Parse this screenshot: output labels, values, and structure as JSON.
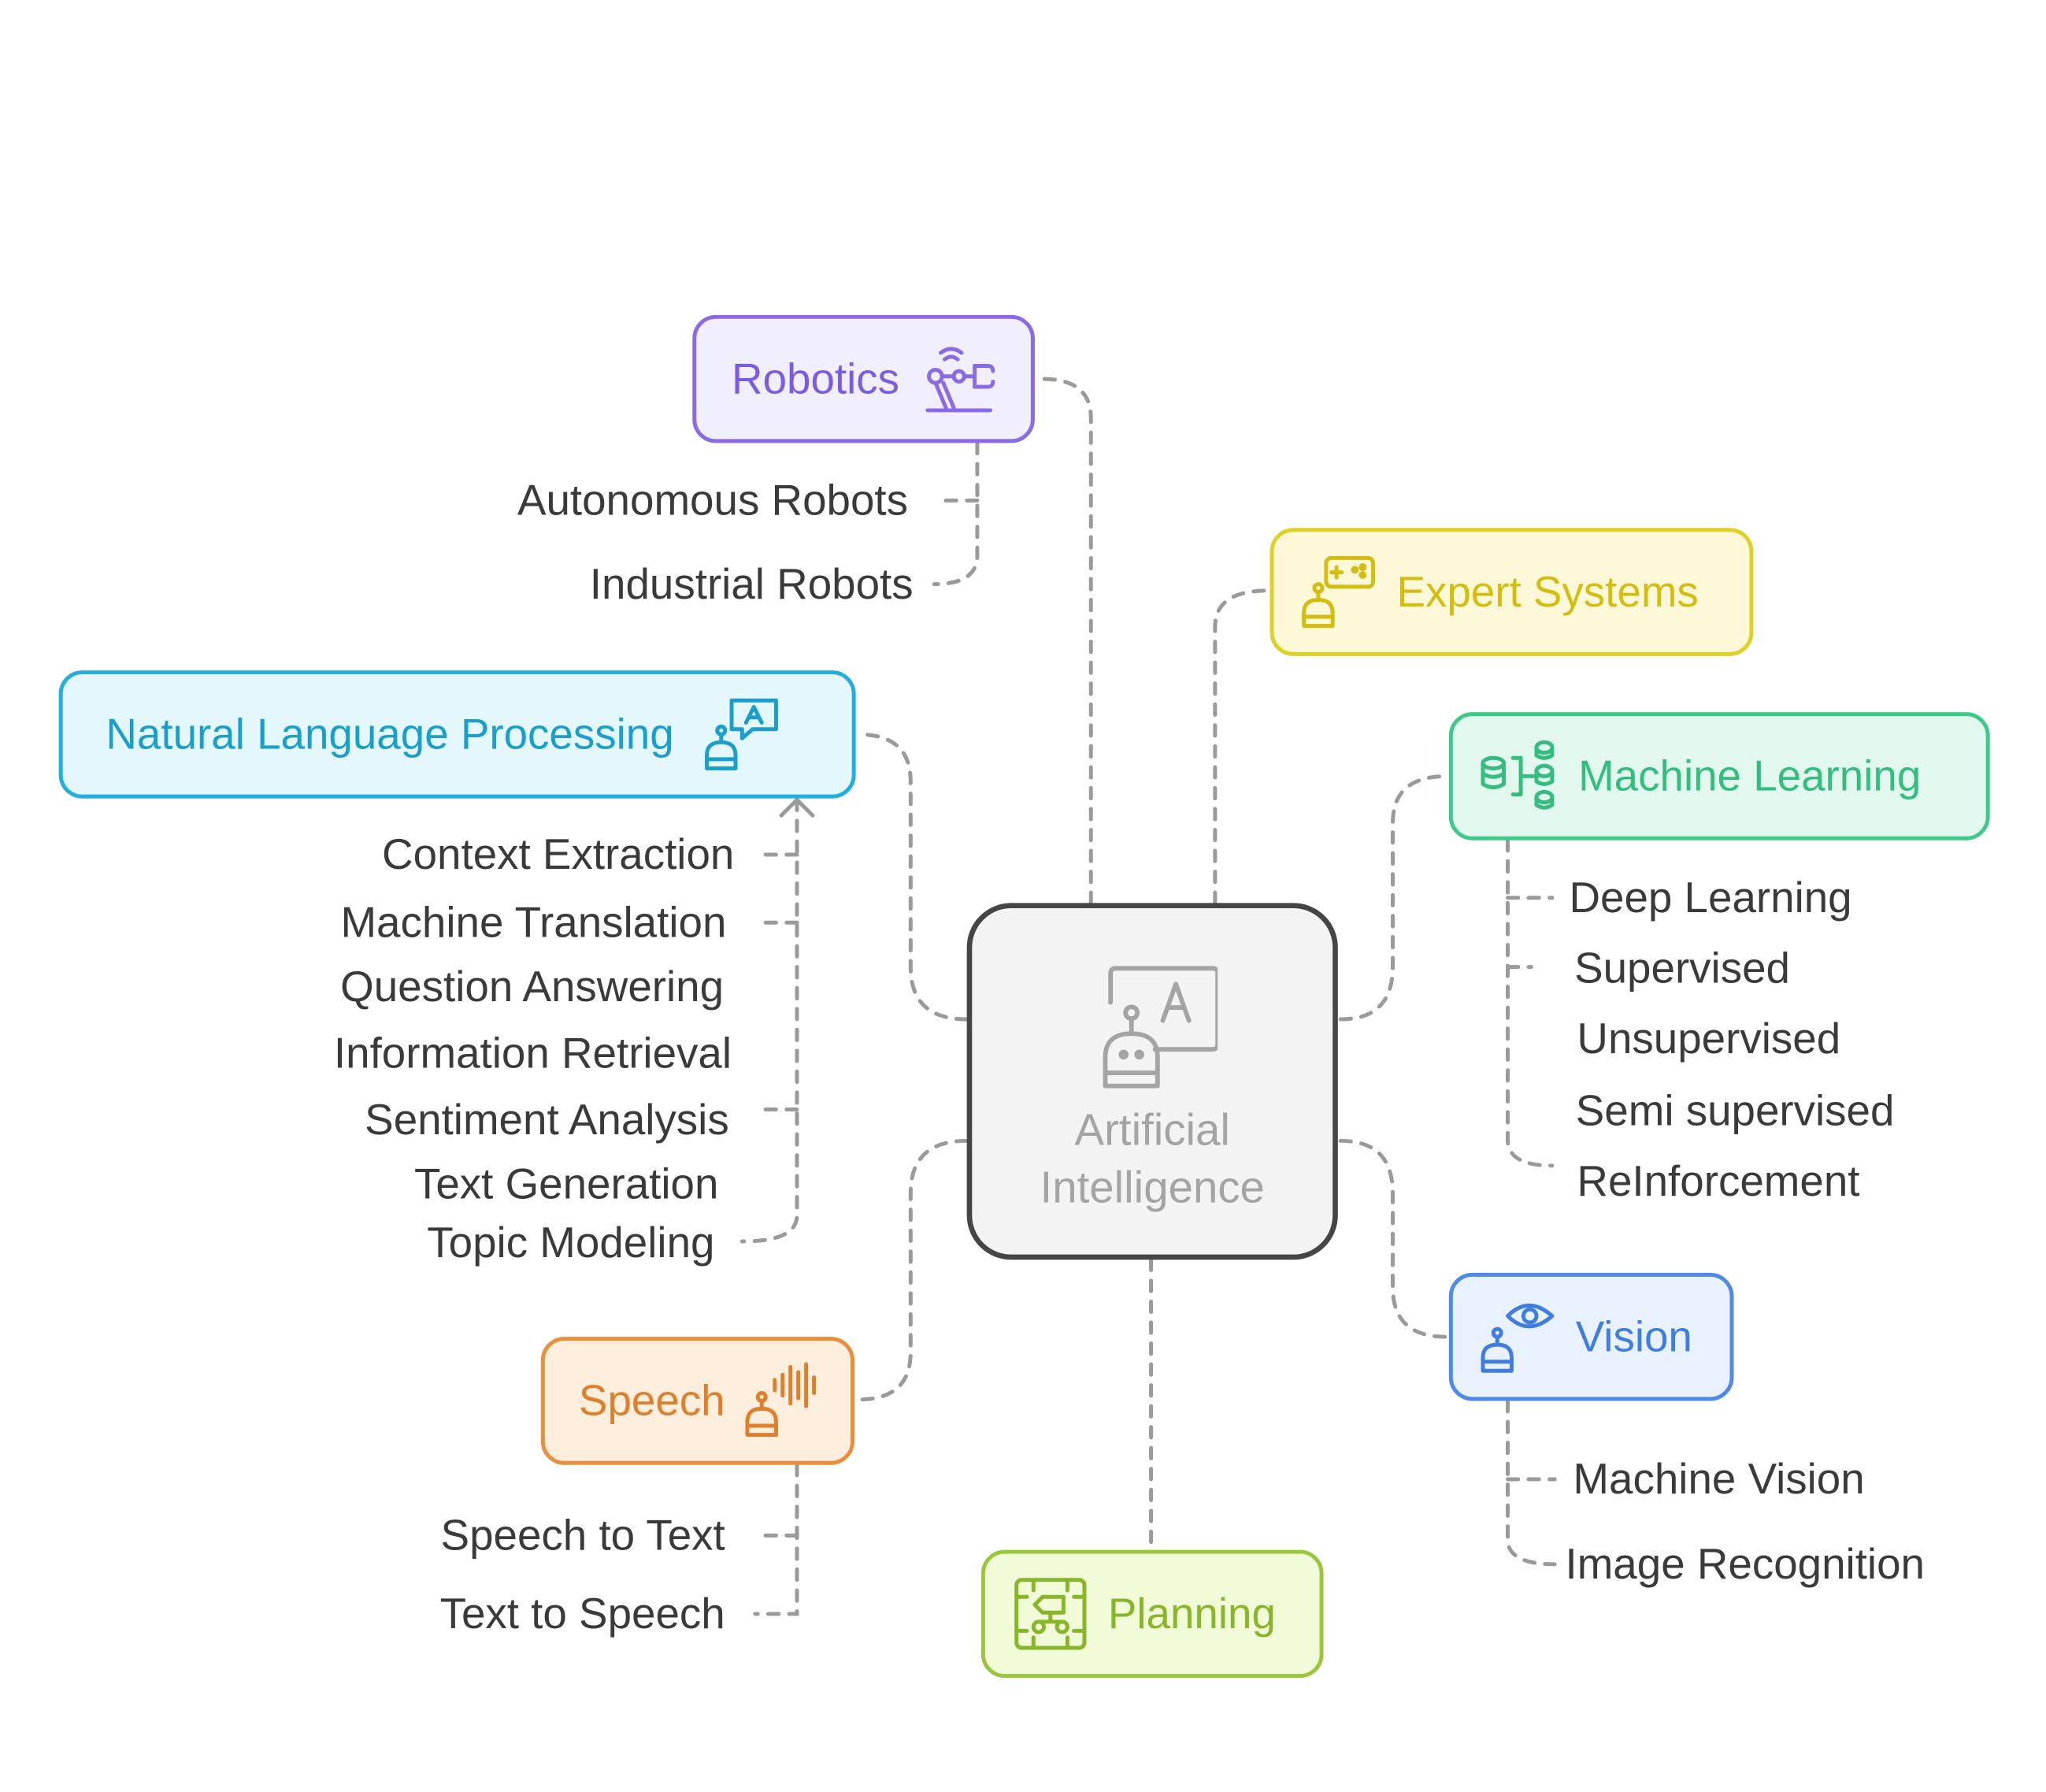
{
  "diagram": {
    "center": {
      "label": "Artificial Intelligence",
      "icon": "robot-ai-text-icon"
    },
    "branches": {
      "robotics": {
        "label": "Robotics",
        "icon": "robotic-arm-icon",
        "color": "#8a6be7",
        "children": [
          "Autonomous Robots",
          "Industrial Robots"
        ]
      },
      "expert_systems": {
        "label": "Expert Systems",
        "icon": "robot-gamepad-icon",
        "color": "#e0cf27",
        "children": []
      },
      "nlp": {
        "label": "Natural Language Processing",
        "icon": "robot-speech-bubble-icon",
        "color": "#23aedb",
        "children": [
          "Context Extraction",
          "Machine Translation",
          "Question Answering",
          "Information Retrieval",
          "Sentiment Analysis",
          "Text Generation",
          "Topic Modeling"
        ]
      },
      "machine_learning": {
        "label": "Machine Learning",
        "icon": "database-tree-icon",
        "color": "#3ec98a",
        "children": [
          "Deep Learning",
          "Supervised",
          "Unsupervised",
          "Semi supervised",
          "ReInforcement"
        ]
      },
      "vision": {
        "label": "Vision",
        "icon": "robot-eye-icon",
        "color": "#4e8ae6",
        "children": [
          "Machine Vision",
          "Image Recognition"
        ]
      },
      "speech": {
        "label": "Speech",
        "icon": "robot-soundwave-icon",
        "color": "#e88f3c",
        "children": [
          "Speech to Text",
          "Text to Speech"
        ]
      },
      "planning": {
        "label": "Planning",
        "icon": "flowchart-board-icon",
        "color": "#98c63c",
        "children": []
      }
    }
  }
}
